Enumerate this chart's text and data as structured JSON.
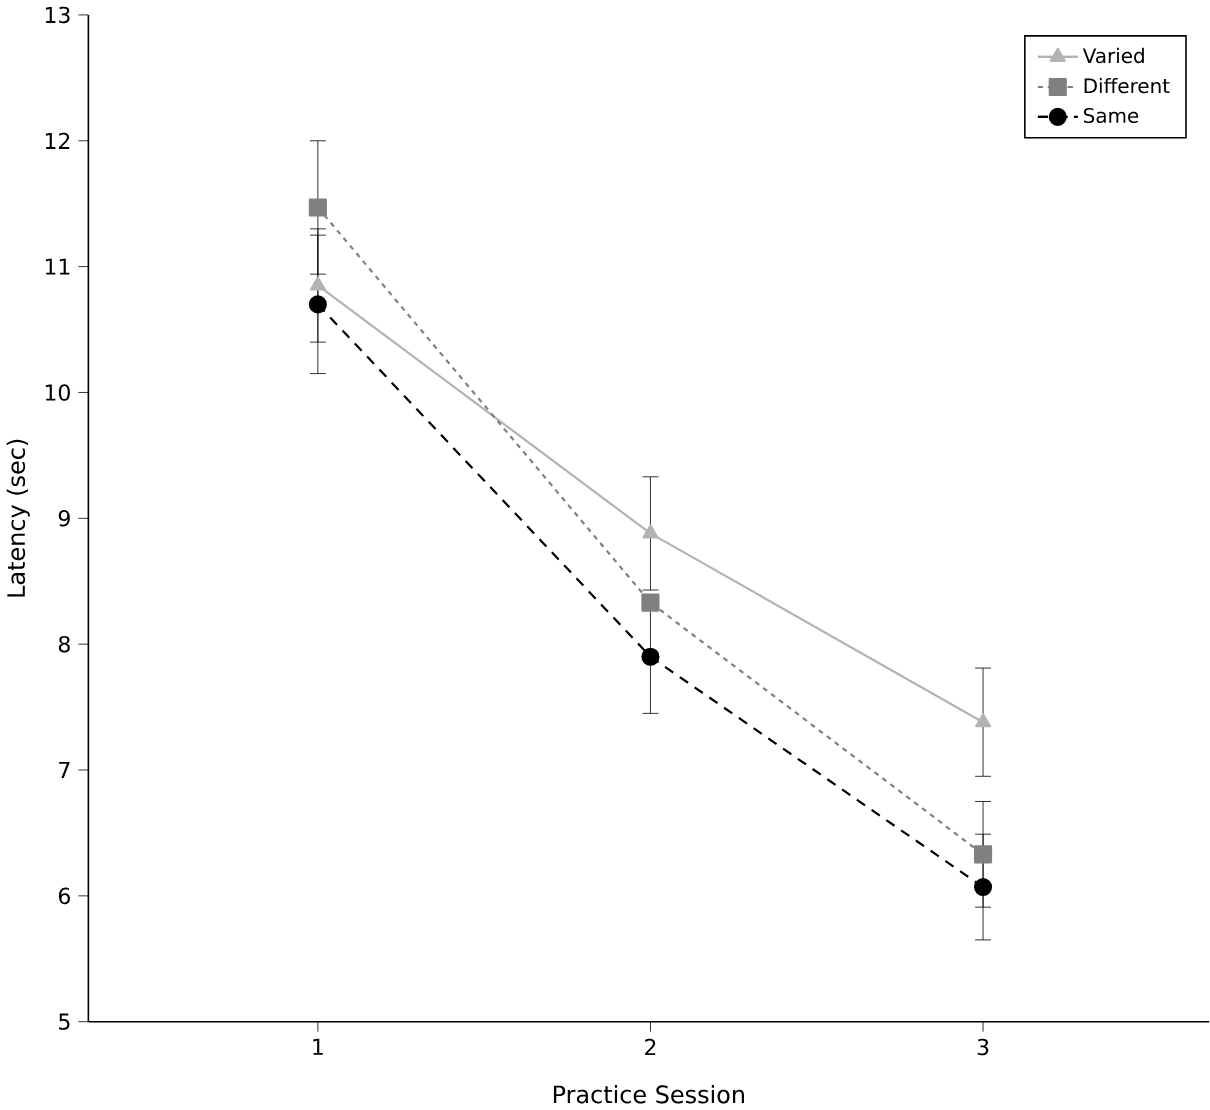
{
  "chart_data": {
    "type": "line",
    "xlabel": "Practice Session",
    "ylabel": "Latency (sec)",
    "categories": [
      "1",
      "2",
      "3"
    ],
    "ylim": [
      5,
      13
    ],
    "yticks": [
      5,
      6,
      7,
      8,
      9,
      10,
      11,
      12,
      13
    ],
    "grid": false,
    "legend": "top right",
    "series": [
      {
        "name": "Varied",
        "color": "#b3b3b3",
        "marker": "triangle",
        "line_style": "solid",
        "values": [
          10.85,
          8.88,
          7.38
        ],
        "errors": [
          0.45,
          0.45,
          0.43
        ]
      },
      {
        "name": "Different",
        "color": "#808080",
        "marker": "square",
        "line_style": "dotted",
        "values": [
          11.47,
          8.33,
          6.33
        ],
        "errors": [
          0.53,
          null,
          0.42
        ]
      },
      {
        "name": "Same",
        "color": "#000000",
        "marker": "circle",
        "line_style": "dashed",
        "values": [
          10.7,
          7.9,
          6.07
        ],
        "errors": [
          0.55,
          0.45,
          0.42
        ]
      }
    ]
  }
}
